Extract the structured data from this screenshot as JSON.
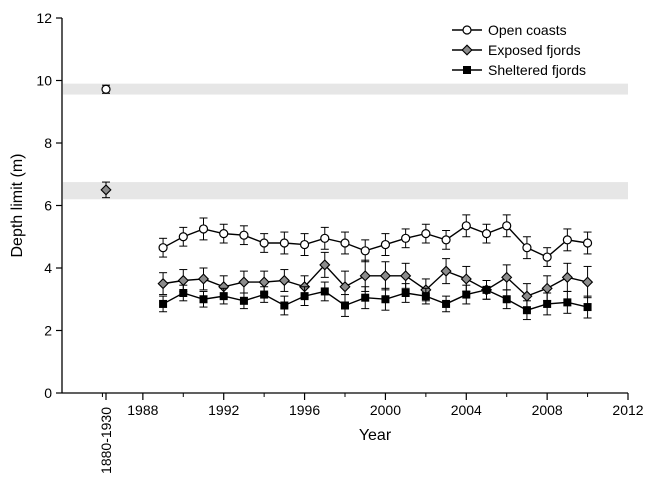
{
  "chart_data": {
    "type": "line",
    "xlabel": "Year",
    "ylabel": "Depth limit (m)",
    "xlim": [
      1984,
      2012
    ],
    "ylim": [
      0,
      12
    ],
    "x_ticks": [
      1988,
      1992,
      1996,
      2000,
      2004,
      2008,
      2012
    ],
    "y_ticks": [
      0,
      2,
      4,
      6,
      8,
      10,
      12
    ],
    "historical_label": "1880-1930",
    "grid": false,
    "legend_position": "top-right",
    "historical_bands": [
      {
        "series": "Open coasts",
        "from": 9.55,
        "to": 9.9
      },
      {
        "series": "Exposed fjords",
        "from": 6.2,
        "to": 6.75
      }
    ],
    "series": [
      {
        "name": "Open coasts",
        "marker": "open-circle",
        "historical": {
          "value": 9.72,
          "err": 0.13
        },
        "x": [
          1989,
          1990,
          1991,
          1992,
          1993,
          1994,
          1995,
          1996,
          1997,
          1998,
          1999,
          2000,
          2001,
          2002,
          2003,
          2004,
          2005,
          2006,
          2007,
          2008,
          2009,
          2010
        ],
        "y": [
          4.65,
          5.0,
          5.25,
          5.1,
          5.05,
          4.8,
          4.8,
          4.75,
          4.95,
          4.8,
          4.55,
          4.75,
          4.95,
          5.1,
          4.9,
          5.35,
          5.1,
          5.35,
          4.65,
          4.35,
          4.9,
          4.8
        ],
        "err": [
          0.3,
          0.3,
          0.35,
          0.3,
          0.3,
          0.3,
          0.35,
          0.35,
          0.35,
          0.35,
          0.35,
          0.35,
          0.3,
          0.3,
          0.3,
          0.35,
          0.3,
          0.35,
          0.35,
          0.3,
          0.35,
          0.35
        ]
      },
      {
        "name": "Exposed fjords",
        "marker": "diamond",
        "historical": {
          "value": 6.5,
          "err": 0.25
        },
        "x": [
          1989,
          1990,
          1991,
          1992,
          1993,
          1994,
          1995,
          1996,
          1997,
          1998,
          1999,
          2000,
          2001,
          2002,
          2003,
          2004,
          2005,
          2006,
          2007,
          2008,
          2009,
          2010
        ],
        "y": [
          3.5,
          3.6,
          3.65,
          3.4,
          3.55,
          3.55,
          3.6,
          3.4,
          4.1,
          3.4,
          3.75,
          3.75,
          3.75,
          3.3,
          3.9,
          3.65,
          3.3,
          3.7,
          3.1,
          3.35,
          3.7,
          3.55
        ],
        "err": [
          0.35,
          0.35,
          0.35,
          0.35,
          0.35,
          0.35,
          0.35,
          0.35,
          0.4,
          0.5,
          0.5,
          0.45,
          0.4,
          0.35,
          0.4,
          0.4,
          0.3,
          0.4,
          0.4,
          0.4,
          0.45,
          0.5
        ]
      },
      {
        "name": "Sheltered fjords",
        "marker": "filled-square",
        "x": [
          1989,
          1990,
          1991,
          1992,
          1993,
          1994,
          1995,
          1996,
          1997,
          1998,
          1999,
          2000,
          2001,
          2002,
          2003,
          2004,
          2005,
          2006,
          2007,
          2008,
          2009,
          2010
        ],
        "y": [
          2.85,
          3.2,
          3.0,
          3.1,
          2.95,
          3.15,
          2.8,
          3.1,
          3.25,
          2.8,
          3.05,
          3.0,
          3.2,
          3.1,
          2.85,
          3.15,
          3.3,
          3.0,
          2.65,
          2.85,
          2.9,
          2.75
        ],
        "err": [
          0.25,
          0.25,
          0.25,
          0.25,
          0.25,
          0.25,
          0.3,
          0.3,
          0.3,
          0.35,
          0.35,
          0.35,
          0.3,
          0.25,
          0.25,
          0.3,
          0.3,
          0.3,
          0.3,
          0.35,
          0.35,
          0.35
        ]
      }
    ]
  }
}
